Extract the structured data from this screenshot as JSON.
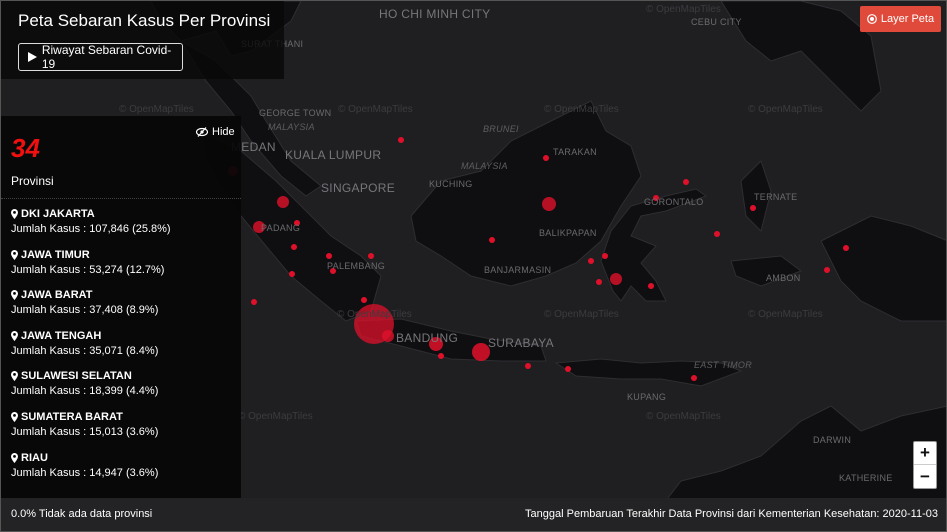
{
  "header": {
    "title": "Peta Sebaran Kasus Per Provinsi",
    "history_button": "Riwayat Sebaran Covid-19",
    "layer_button": "Layer Peta"
  },
  "sidebar": {
    "hide_label": "Hide",
    "count": "34",
    "count_label": "Provinsi",
    "items": [
      {
        "name": "DKI JAKARTA",
        "value": "Jumlah Kasus : 107,846 (25.8%)"
      },
      {
        "name": "JAWA TIMUR",
        "value": "Jumlah Kasus : 53,274 (12.7%)"
      },
      {
        "name": "JAWA BARAT",
        "value": "Jumlah Kasus : 37,408 (8.9%)"
      },
      {
        "name": "JAWA TENGAH",
        "value": "Jumlah Kasus : 35,071 (8.4%)"
      },
      {
        "name": "SULAWESI SELATAN",
        "value": "Jumlah Kasus : 18,399 (4.4%)"
      },
      {
        "name": "SUMATERA BARAT",
        "value": "Jumlah Kasus : 15,013 (3.6%)"
      },
      {
        "name": "RIAU",
        "value": "Jumlah Kasus : 14,947 (3.6%)"
      }
    ]
  },
  "footer": {
    "left": "0.0% Tidak ada data provinsi",
    "right": "Tanggal Pembaruan Terakhir Data Provinsi dari Kementerian Kesehatan: 2020-11-03"
  },
  "map": {
    "labels": {
      "hcmc": "Ho Chi Minh City",
      "cebu": "Cebu City",
      "surat": "Surat Thani",
      "george": "George Town",
      "malaysia1": "Malaysia",
      "medan": "Medan",
      "kl": "Kuala Lumpur",
      "singapore": "Singapore",
      "brunei": "Brunei",
      "malaysia2": "Malaysia",
      "tarakan": "Tarakan",
      "kuching": "Kuching",
      "padang": "Padang",
      "gorontalo": "Gorontalo",
      "ternate": "Ternate",
      "balikpapan": "Balikpapan",
      "palembang": "Palembang",
      "banjarmasin": "Banjarmasin",
      "ambon": "Ambon",
      "bandung": "Bandung",
      "surabaya": "Surabaya",
      "easttimor": "East Timor",
      "kupang": "Kupang",
      "darwin": "Darwin",
      "katherine": "Katherine"
    },
    "attribution": "© OpenMapTiles",
    "zoom_in": "+",
    "zoom_out": "−",
    "colors": {
      "marker": "#e0102a",
      "land": "#0f0f11",
      "sea": "#1f1f21",
      "accent": "#e04a3a"
    }
  }
}
